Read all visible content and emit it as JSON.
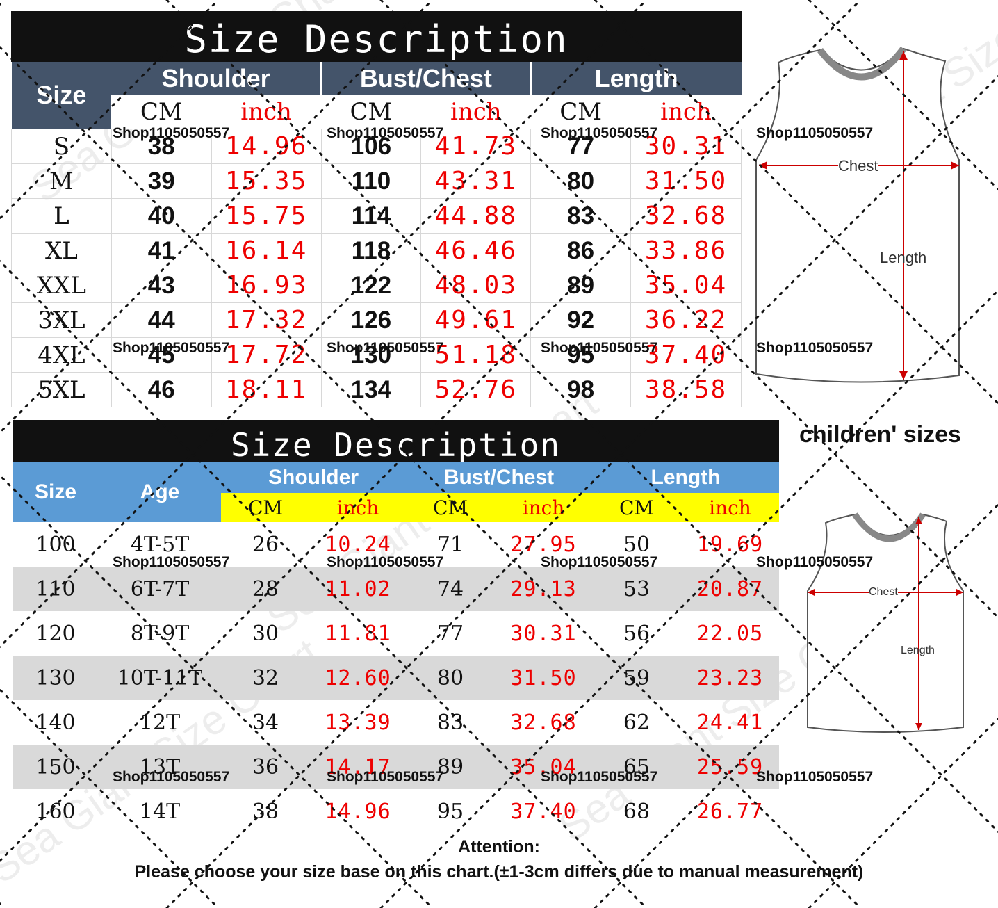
{
  "adult": {
    "title": "Size Description",
    "headers": {
      "size": "Size",
      "shoulder": "Shoulder",
      "bust": "Bust/Chest",
      "length": "Length",
      "cm": "CM",
      "inch": "inch"
    },
    "rows": [
      {
        "size": "S",
        "shoulder_cm": "38",
        "shoulder_in": "14.96",
        "bust_cm": "106",
        "bust_in": "41.73",
        "length_cm": "77",
        "length_in": "30.31"
      },
      {
        "size": "M",
        "shoulder_cm": "39",
        "shoulder_in": "15.35",
        "bust_cm": "110",
        "bust_in": "43.31",
        "length_cm": "80",
        "length_in": "31.50"
      },
      {
        "size": "L",
        "shoulder_cm": "40",
        "shoulder_in": "15.75",
        "bust_cm": "114",
        "bust_in": "44.88",
        "length_cm": "83",
        "length_in": "32.68"
      },
      {
        "size": "XL",
        "shoulder_cm": "41",
        "shoulder_in": "16.14",
        "bust_cm": "118",
        "bust_in": "46.46",
        "length_cm": "86",
        "length_in": "33.86"
      },
      {
        "size": "XXL",
        "shoulder_cm": "43",
        "shoulder_in": "16.93",
        "bust_cm": "122",
        "bust_in": "48.03",
        "length_cm": "89",
        "length_in": "35.04"
      },
      {
        "size": "3XL",
        "shoulder_cm": "44",
        "shoulder_in": "17.32",
        "bust_cm": "126",
        "bust_in": "49.61",
        "length_cm": "92",
        "length_in": "36.22"
      },
      {
        "size": "4XL",
        "shoulder_cm": "45",
        "shoulder_in": "17.72",
        "bust_cm": "130",
        "bust_in": "51.18",
        "length_cm": "95",
        "length_in": "37.40"
      },
      {
        "size": "5XL",
        "shoulder_cm": "46",
        "shoulder_in": "18.11",
        "bust_cm": "134",
        "bust_in": "52.76",
        "length_cm": "98",
        "length_in": "38.58"
      }
    ],
    "diagram": {
      "chest": "Chest",
      "length": "Length"
    }
  },
  "kids": {
    "title": "Size Description",
    "label": "children' sizes",
    "headers": {
      "size": "Size",
      "age": "Age",
      "shoulder": "Shoulder",
      "bust": "Bust/Chest",
      "length": "Length",
      "cm": "CM",
      "inch": "inch"
    },
    "rows": [
      {
        "size": "100",
        "age": "4T-5T",
        "shoulder_cm": "26",
        "shoulder_in": "10.24",
        "bust_cm": "71",
        "bust_in": "27.95",
        "length_cm": "50",
        "length_in": "19.69"
      },
      {
        "size": "110",
        "age": "6T-7T",
        "shoulder_cm": "28",
        "shoulder_in": "11.02",
        "bust_cm": "74",
        "bust_in": "29.13",
        "length_cm": "53",
        "length_in": "20.87"
      },
      {
        "size": "120",
        "age": "8T-9T",
        "shoulder_cm": "30",
        "shoulder_in": "11.81",
        "bust_cm": "77",
        "bust_in": "30.31",
        "length_cm": "56",
        "length_in": "22.05"
      },
      {
        "size": "130",
        "age": "10T-11T",
        "shoulder_cm": "32",
        "shoulder_in": "12.60",
        "bust_cm": "80",
        "bust_in": "31.50",
        "length_cm": "59",
        "length_in": "23.23"
      },
      {
        "size": "140",
        "age": "12T",
        "shoulder_cm": "34",
        "shoulder_in": "13.39",
        "bust_cm": "83",
        "bust_in": "32.68",
        "length_cm": "62",
        "length_in": "24.41"
      },
      {
        "size": "150",
        "age": "13T",
        "shoulder_cm": "36",
        "shoulder_in": "14.17",
        "bust_cm": "89",
        "bust_in": "35.04",
        "length_cm": "65",
        "length_in": "25.59"
      },
      {
        "size": "160",
        "age": "14T",
        "shoulder_cm": "38",
        "shoulder_in": "14.96",
        "bust_cm": "95",
        "bust_in": "37.40",
        "length_cm": "68",
        "length_in": "26.77"
      }
    ],
    "diagram": {
      "chest": "Chest",
      "length": "Length"
    }
  },
  "attention": {
    "title": "Attention:",
    "text": "Please choose your size base on this chart.(±1-3cm differs due to manual measurement)"
  },
  "shop_id": "Shop1105050557",
  "watermark": "Sea Giant Size Chart"
}
